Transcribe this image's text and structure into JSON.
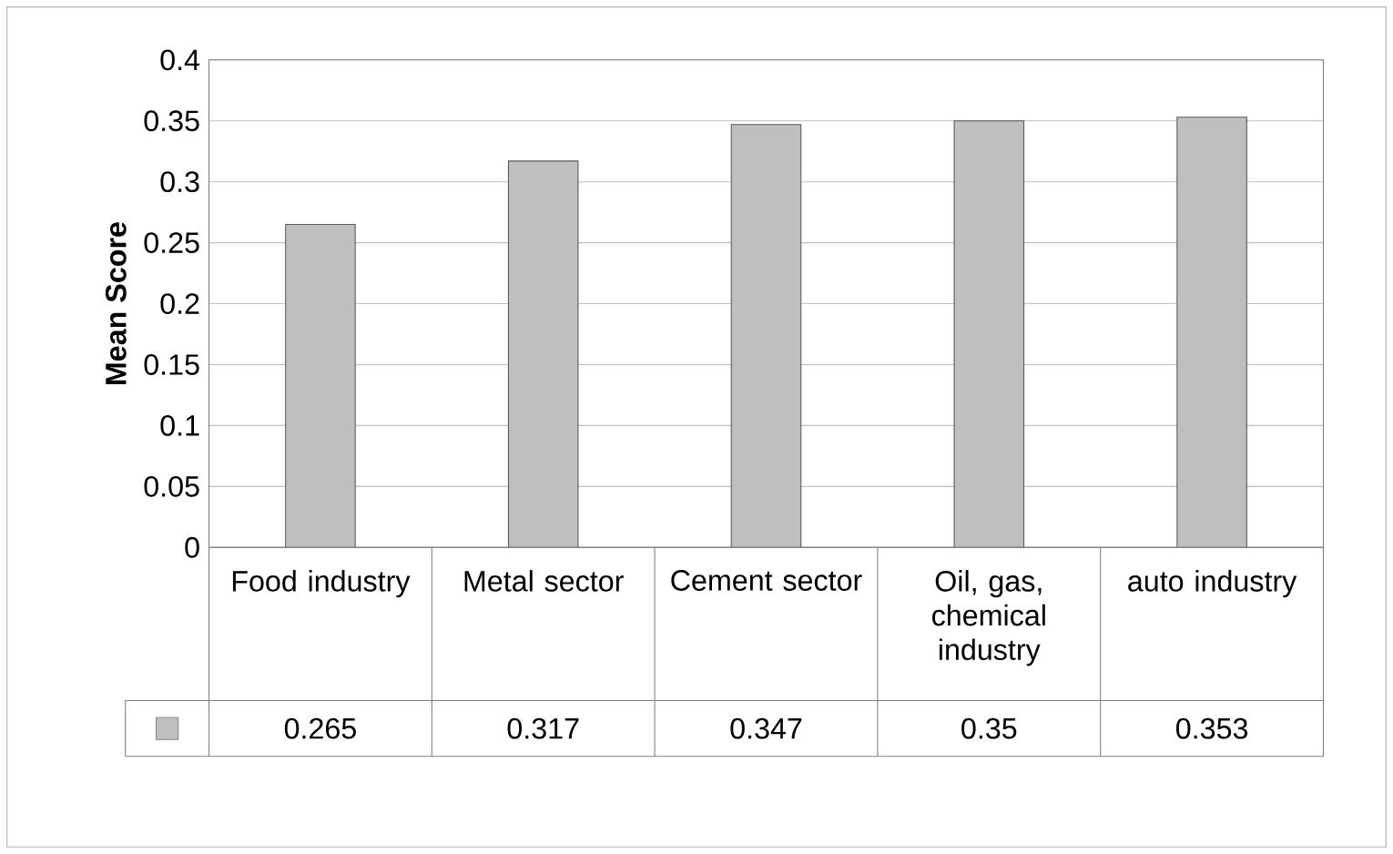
{
  "chart_data": {
    "type": "bar",
    "ylabel": "Mean Score",
    "categories": [
      "Food industry",
      "Metal sector",
      "Cement sector",
      "Oil, gas, chemical industry",
      "auto industry"
    ],
    "values": [
      0.265,
      0.317,
      0.347,
      0.35,
      0.353
    ],
    "color": "#bfbfbf",
    "ylim": [
      0,
      0.4
    ],
    "yticks": [
      0,
      0.05,
      0.1,
      0.15,
      0.2,
      0.25,
      0.3,
      0.35,
      0.4
    ],
    "grid": true,
    "data_labels": true
  }
}
